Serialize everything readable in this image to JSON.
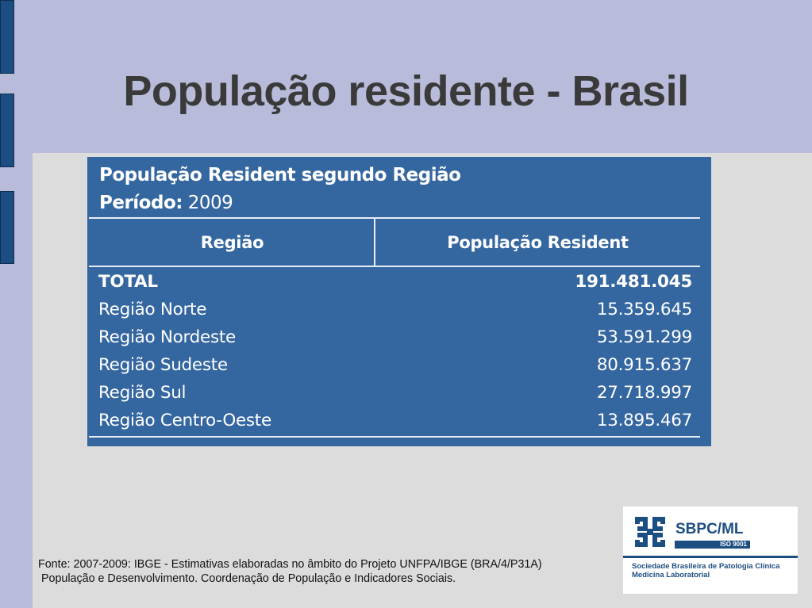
{
  "slide": {
    "title": "População residente - Brasil"
  },
  "table": {
    "title": "População Resident segundo Região",
    "period_label": "Período:",
    "period_value": "2009",
    "columns": [
      "Região",
      "População Resident"
    ],
    "rows": [
      {
        "region": "TOTAL",
        "population": "191.481.045"
      },
      {
        "region": "Região Norte",
        "population": "15.359.645"
      },
      {
        "region": "Região Nordeste",
        "population": "53.591.299"
      },
      {
        "region": "Região Sudeste",
        "population": "80.915.637"
      },
      {
        "region": "Região Sul",
        "population": "27.718.997"
      },
      {
        "region": "Região Centro-Oeste",
        "population": "13.895.467"
      }
    ]
  },
  "source": {
    "line1": "Fonte: 2007-2009: IBGE - Estimativas elaboradas no âmbito do Projeto UNFPA/IBGE (BRA/4/P31A)",
    "line2": " População e Desenvolvimento. Coordenação de População e Indicadores Sociais."
  },
  "logo": {
    "abbr": "SBPC/ML",
    "iso": "ISO 9001",
    "name_line1": "Sociedade Brasileira de Patologia Clínica",
    "name_line2": "Medicina Laboratorial"
  },
  "colors": {
    "background": "#b8bbd9",
    "panel": "#dcdcdc",
    "table_bg": "#3466a0",
    "accent": "#1d4e82"
  }
}
